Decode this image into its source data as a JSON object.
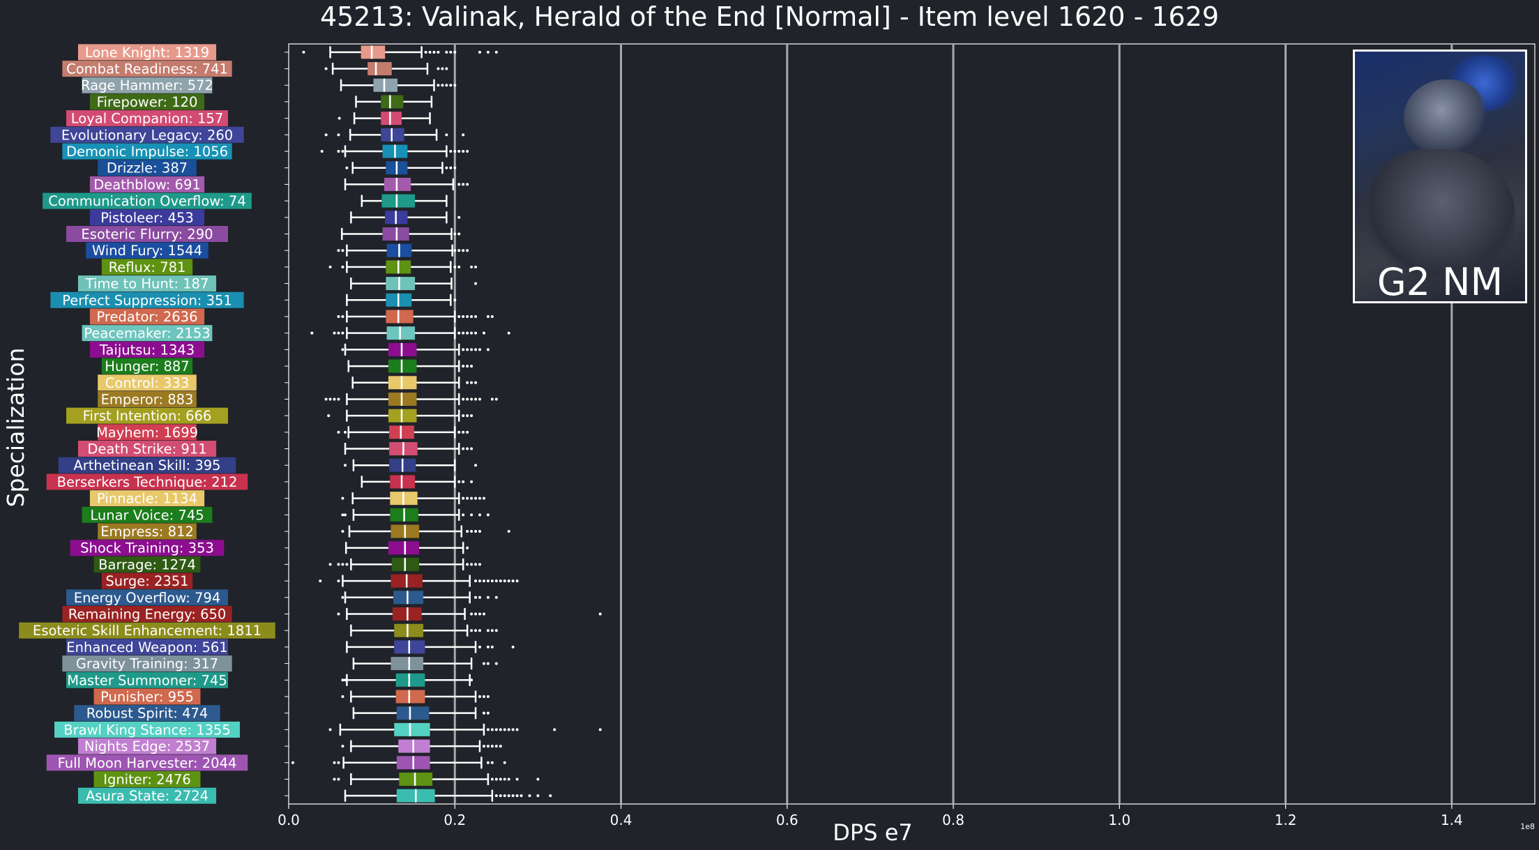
{
  "chart_data": {
    "type": "boxplot",
    "title": "45213: Valinak, Herald of the End [Normal] - Item level 1620 - 1629",
    "xlabel": "DPS e7",
    "ylabel": "Specialization",
    "x_offset_label": "1e8",
    "xlim": [
      0,
      1.5
    ],
    "xticks": [
      0.0,
      0.2,
      0.4,
      0.6,
      0.8,
      1.0,
      1.2,
      1.4
    ],
    "xtick_labels": [
      "0.0",
      "0.2",
      "0.4",
      "0.6",
      "0.8",
      "1.0",
      "1.2",
      "1.4"
    ],
    "grid": "vertical",
    "series": [
      {
        "label": "Lone Knight: 1319",
        "color": "#e79a8c",
        "whislo": 0.05,
        "q1": 0.087,
        "med": 0.1,
        "q3": 0.116,
        "whishi": 0.16,
        "fliers": [
          0.018,
          0.165,
          0.17,
          0.175,
          0.18,
          0.19,
          0.195,
          0.2,
          0.23,
          0.24,
          0.25
        ]
      },
      {
        "label": "Combat Readiness: 741",
        "color": "#c47c6e",
        "whislo": 0.053,
        "q1": 0.095,
        "med": 0.105,
        "q3": 0.124,
        "whishi": 0.167,
        "fliers": [
          0.045,
          0.18,
          0.185,
          0.19
        ]
      },
      {
        "label": "Rage Hammer: 572",
        "color": "#8fa3ad",
        "whislo": 0.063,
        "q1": 0.102,
        "med": 0.115,
        "q3": 0.131,
        "whishi": 0.175,
        "fliers": [
          0.18,
          0.185,
          0.19,
          0.195,
          0.2
        ]
      },
      {
        "label": "Firepower: 120",
        "color": "#3f6a17",
        "whislo": 0.081,
        "q1": 0.111,
        "med": 0.122,
        "q3": 0.138,
        "whishi": 0.172,
        "fliers": []
      },
      {
        "label": "Loyal Companion: 157",
        "color": "#d24b73",
        "whislo": 0.079,
        "q1": 0.111,
        "med": 0.122,
        "q3": 0.136,
        "whishi": 0.17,
        "fliers": [
          0.061
        ]
      },
      {
        "label": "Evolutionary Legacy: 260",
        "color": "#3f4598",
        "whislo": 0.074,
        "q1": 0.111,
        "med": 0.124,
        "q3": 0.139,
        "whishi": 0.178,
        "fliers": [
          0.045,
          0.06,
          0.19,
          0.21
        ]
      },
      {
        "label": "Demonic Impulse: 1056",
        "color": "#1791b5",
        "whislo": 0.068,
        "q1": 0.113,
        "med": 0.128,
        "q3": 0.143,
        "whishi": 0.19,
        "fliers": [
          0.04,
          0.06,
          0.065,
          0.195,
          0.2,
          0.205,
          0.21,
          0.215
        ]
      },
      {
        "label": "Drizzle: 387",
        "color": "#1a4f99",
        "whislo": 0.077,
        "q1": 0.117,
        "med": 0.13,
        "q3": 0.143,
        "whishi": 0.185,
        "fliers": [
          0.07,
          0.19,
          0.195,
          0.2
        ]
      },
      {
        "label": "Deathblow: 691",
        "color": "#a45aac",
        "whislo": 0.068,
        "q1": 0.115,
        "med": 0.13,
        "q3": 0.147,
        "whishi": 0.198,
        "fliers": [
          0.205,
          0.21,
          0.215
        ]
      },
      {
        "label": "Communication Overflow: 74",
        "color": "#1f9a8a",
        "whislo": 0.088,
        "q1": 0.112,
        "med": 0.13,
        "q3": 0.152,
        "whishi": 0.19,
        "fliers": []
      },
      {
        "label": "Pistoleer: 453",
        "color": "#3b3b9c",
        "whislo": 0.075,
        "q1": 0.116,
        "med": 0.129,
        "q3": 0.143,
        "whishi": 0.19,
        "fliers": [
          0.205
        ]
      },
      {
        "label": "Esoteric Flurry: 290",
        "color": "#8a4ba0",
        "whislo": 0.064,
        "q1": 0.113,
        "med": 0.13,
        "q3": 0.145,
        "whishi": 0.196,
        "fliers": [
          0.2,
          0.205
        ]
      },
      {
        "label": "Wind Fury: 1544",
        "color": "#1b4ea0",
        "whislo": 0.07,
        "q1": 0.118,
        "med": 0.133,
        "q3": 0.148,
        "whishi": 0.197,
        "fliers": [
          0.06,
          0.065,
          0.2,
          0.205,
          0.21,
          0.215
        ]
      },
      {
        "label": "Reflux: 781",
        "color": "#5e9212",
        "whislo": 0.07,
        "q1": 0.117,
        "med": 0.132,
        "q3": 0.147,
        "whishi": 0.195,
        "fliers": [
          0.05,
          0.065,
          0.2,
          0.205,
          0.22,
          0.225
        ]
      },
      {
        "label": "Time to Hunt: 187",
        "color": "#6fc2b8",
        "whislo": 0.075,
        "q1": 0.117,
        "med": 0.133,
        "q3": 0.152,
        "whishi": 0.196,
        "fliers": [
          0.225
        ]
      },
      {
        "label": "Perfect Suppression: 351",
        "color": "#1a8fb0",
        "whislo": 0.07,
        "q1": 0.117,
        "med": 0.132,
        "q3": 0.148,
        "whishi": 0.195,
        "fliers": [
          0.2
        ]
      },
      {
        "label": "Predator: 2636",
        "color": "#d0694e",
        "whislo": 0.07,
        "q1": 0.117,
        "med": 0.132,
        "q3": 0.15,
        "whishi": 0.2,
        "fliers": [
          0.06,
          0.065,
          0.205,
          0.21,
          0.215,
          0.22,
          0.225,
          0.24,
          0.245
        ]
      },
      {
        "label": "Peacemaker: 2153",
        "color": "#6dc5bd",
        "whislo": 0.07,
        "q1": 0.118,
        "med": 0.134,
        "q3": 0.152,
        "whishi": 0.2,
        "fliers": [
          0.028,
          0.055,
          0.06,
          0.065,
          0.205,
          0.21,
          0.215,
          0.22,
          0.225,
          0.235,
          0.265
        ]
      },
      {
        "label": "Taijutsu: 1343",
        "color": "#8c0e8f",
        "whislo": 0.068,
        "q1": 0.12,
        "med": 0.136,
        "q3": 0.154,
        "whishi": 0.205,
        "fliers": [
          0.065,
          0.21,
          0.215,
          0.22,
          0.225,
          0.23,
          0.24
        ]
      },
      {
        "label": "Hunger: 887",
        "color": "#1c7d1c",
        "whislo": 0.072,
        "q1": 0.12,
        "med": 0.136,
        "q3": 0.154,
        "whishi": 0.205,
        "fliers": [
          0.21,
          0.215,
          0.22
        ]
      },
      {
        "label": "Control: 333",
        "color": "#e8c86a",
        "whislo": 0.077,
        "q1": 0.12,
        "med": 0.136,
        "q3": 0.154,
        "whishi": 0.205,
        "fliers": [
          0.215,
          0.22,
          0.225
        ]
      },
      {
        "label": "Emperor: 883",
        "color": "#9c7a22",
        "whislo": 0.07,
        "q1": 0.12,
        "med": 0.136,
        "q3": 0.154,
        "whishi": 0.205,
        "fliers": [
          0.045,
          0.05,
          0.055,
          0.06,
          0.21,
          0.215,
          0.22,
          0.225,
          0.23,
          0.245,
          0.25
        ]
      },
      {
        "label": "First Intention: 666",
        "color": "#a4a020",
        "whislo": 0.07,
        "q1": 0.12,
        "med": 0.136,
        "q3": 0.154,
        "whishi": 0.205,
        "fliers": [
          0.048,
          0.21,
          0.215,
          0.22
        ]
      },
      {
        "label": "Mayhem: 1699",
        "color": "#d13f52",
        "whislo": 0.072,
        "q1": 0.121,
        "med": 0.135,
        "q3": 0.151,
        "whishi": 0.2,
        "fliers": [
          0.06,
          0.068,
          0.205,
          0.21,
          0.215
        ]
      },
      {
        "label": "Death Strike: 911",
        "color": "#d24d72",
        "whislo": 0.068,
        "q1": 0.121,
        "med": 0.138,
        "q3": 0.155,
        "whishi": 0.205,
        "fliers": [
          0.21,
          0.215,
          0.22
        ]
      },
      {
        "label": "Arthetinean Skill: 395",
        "color": "#333f86",
        "whislo": 0.078,
        "q1": 0.121,
        "med": 0.137,
        "q3": 0.153,
        "whishi": 0.2,
        "fliers": [
          0.068,
          0.225
        ]
      },
      {
        "label": "Berserkers Technique: 212",
        "color": "#c8324f",
        "whislo": 0.088,
        "q1": 0.122,
        "med": 0.136,
        "q3": 0.152,
        "whishi": 0.2,
        "fliers": [
          0.205,
          0.21,
          0.22
        ]
      },
      {
        "label": "Pinnacle: 1134",
        "color": "#e8c86a",
        "whislo": 0.077,
        "q1": 0.122,
        "med": 0.138,
        "q3": 0.155,
        "whishi": 0.205,
        "fliers": [
          0.065,
          0.21,
          0.215,
          0.22,
          0.225,
          0.23,
          0.235
        ]
      },
      {
        "label": "Lunar Voice: 745",
        "color": "#1b7d1b",
        "whislo": 0.078,
        "q1": 0.122,
        "med": 0.139,
        "q3": 0.156,
        "whishi": 0.205,
        "fliers": [
          0.065,
          0.068,
          0.21,
          0.22,
          0.23,
          0.24
        ]
      },
      {
        "label": "Empress: 812",
        "color": "#9c7a22",
        "whislo": 0.073,
        "q1": 0.123,
        "med": 0.14,
        "q3": 0.157,
        "whishi": 0.208,
        "fliers": [
          0.065,
          0.215,
          0.22,
          0.225,
          0.23,
          0.265
        ]
      },
      {
        "label": "Shock Training: 353",
        "color": "#8c0e8f",
        "whislo": 0.069,
        "q1": 0.12,
        "med": 0.14,
        "q3": 0.157,
        "whishi": 0.21,
        "fliers": [
          0.215
        ]
      },
      {
        "label": "Barrage: 1274",
        "color": "#2e5a14",
        "whislo": 0.075,
        "q1": 0.124,
        "med": 0.14,
        "q3": 0.157,
        "whishi": 0.21,
        "fliers": [
          0.05,
          0.06,
          0.065,
          0.07,
          0.215,
          0.22,
          0.225,
          0.23
        ]
      },
      {
        "label": "Surge: 2351",
        "color": "#9a2222",
        "whislo": 0.065,
        "q1": 0.123,
        "med": 0.142,
        "q3": 0.161,
        "whishi": 0.218,
        "fliers": [
          0.038,
          0.06,
          0.225,
          0.23,
          0.235,
          0.24,
          0.245,
          0.25,
          0.255,
          0.26,
          0.265,
          0.27,
          0.275
        ]
      },
      {
        "label": "Energy Overflow: 794",
        "color": "#2c5a8e",
        "whislo": 0.068,
        "q1": 0.126,
        "med": 0.143,
        "q3": 0.162,
        "whishi": 0.218,
        "fliers": [
          0.065,
          0.225,
          0.23,
          0.24,
          0.25
        ]
      },
      {
        "label": "Remaining Energy: 650",
        "color": "#9a2222",
        "whislo": 0.07,
        "q1": 0.125,
        "med": 0.143,
        "q3": 0.16,
        "whishi": 0.212,
        "fliers": [
          0.06,
          0.22,
          0.225,
          0.23,
          0.235,
          0.375
        ]
      },
      {
        "label": "Esoteric Skill Enhancement: 1811",
        "color": "#8c8c1c",
        "whislo": 0.075,
        "q1": 0.127,
        "med": 0.143,
        "q3": 0.162,
        "whishi": 0.215,
        "fliers": [
          0.22,
          0.225,
          0.23,
          0.24,
          0.245,
          0.25
        ]
      },
      {
        "label": "Enhanced Weapon: 561",
        "color": "#3f4598",
        "whislo": 0.07,
        "q1": 0.127,
        "med": 0.145,
        "q3": 0.164,
        "whishi": 0.225,
        "fliers": [
          0.23,
          0.24,
          0.245,
          0.27
        ]
      },
      {
        "label": "Gravity Training: 317",
        "color": "#7e929c",
        "whislo": 0.078,
        "q1": 0.123,
        "med": 0.145,
        "q3": 0.162,
        "whishi": 0.22,
        "fliers": [
          0.235,
          0.24,
          0.25
        ]
      },
      {
        "label": "Master Summoner: 745",
        "color": "#1f9a8a",
        "whislo": 0.07,
        "q1": 0.129,
        "med": 0.145,
        "q3": 0.164,
        "whishi": 0.218,
        "fliers": [
          0.065,
          0.068,
          0.22
        ]
      },
      {
        "label": "Punisher: 955",
        "color": "#d0694e",
        "whislo": 0.075,
        "q1": 0.129,
        "med": 0.145,
        "q3": 0.164,
        "whishi": 0.225,
        "fliers": [
          0.065,
          0.23,
          0.235,
          0.24
        ]
      },
      {
        "label": "Robust Spirit: 474",
        "color": "#2c5a8e",
        "whislo": 0.078,
        "q1": 0.13,
        "med": 0.146,
        "q3": 0.169,
        "whishi": 0.225,
        "fliers": [
          0.235,
          0.24
        ]
      },
      {
        "label": "Brawl King Stance: 1355",
        "color": "#55d1c4",
        "whislo": 0.062,
        "q1": 0.127,
        "med": 0.146,
        "q3": 0.17,
        "whishi": 0.235,
        "fliers": [
          0.05,
          0.24,
          0.245,
          0.25,
          0.255,
          0.26,
          0.265,
          0.27,
          0.275,
          0.32,
          0.375
        ]
      },
      {
        "label": "Nights Edge: 2537",
        "color": "#c17fd1",
        "whislo": 0.075,
        "q1": 0.132,
        "med": 0.15,
        "q3": 0.17,
        "whishi": 0.23,
        "fliers": [
          0.065,
          0.235,
          0.24,
          0.245,
          0.25,
          0.255
        ]
      },
      {
        "label": "Full Moon Harvester: 2044",
        "color": "#9e55b2",
        "whislo": 0.066,
        "q1": 0.13,
        "med": 0.15,
        "q3": 0.17,
        "whishi": 0.232,
        "fliers": [
          0.005,
          0.055,
          0.06,
          0.24,
          0.245,
          0.26
        ]
      },
      {
        "label": "Igniter: 2476",
        "color": "#5e9212",
        "whislo": 0.075,
        "q1": 0.133,
        "med": 0.152,
        "q3": 0.173,
        "whishi": 0.24,
        "fliers": [
          0.055,
          0.06,
          0.245,
          0.25,
          0.255,
          0.26,
          0.265,
          0.275,
          0.3
        ]
      },
      {
        "label": "Asura State: 2724",
        "color": "#3bbcb0",
        "whislo": 0.068,
        "q1": 0.13,
        "med": 0.153,
        "q3": 0.176,
        "whishi": 0.245,
        "fliers": [
          0.25,
          0.255,
          0.26,
          0.265,
          0.27,
          0.275,
          0.28,
          0.29,
          0.3,
          0.315
        ]
      }
    ]
  },
  "portrait": {
    "label": "G2 NM"
  },
  "colors": {
    "background": "#202329",
    "axis": "#ffffff",
    "grid": "#a9a9a9",
    "text": "#ffffff"
  }
}
